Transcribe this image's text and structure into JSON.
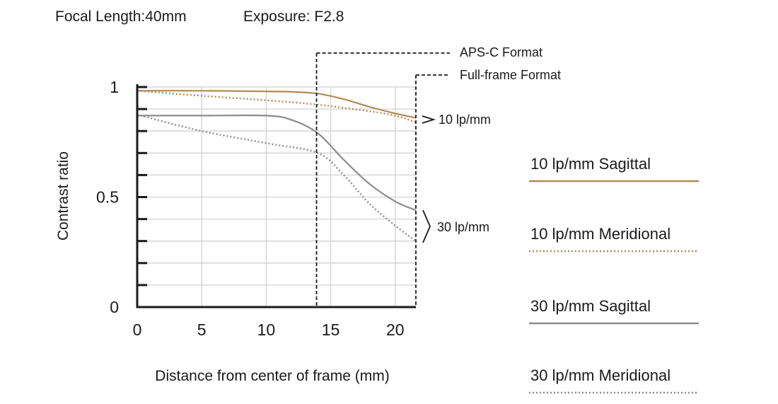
{
  "header": {
    "focal_length": "Focal Length:40mm",
    "exposure": "Exposure: F2.8"
  },
  "chart_data": {
    "type": "line",
    "xlabel": "Distance from center of frame (mm)",
    "ylabel": "Contrast ratio",
    "xlim": [
      0,
      21.6
    ],
    "ylim": [
      0,
      1
    ],
    "x_ticks": [
      0,
      5,
      10,
      15,
      20
    ],
    "x_tick_labels": [
      "0",
      "5",
      "10",
      "15",
      "20"
    ],
    "y_tick_labels": [
      {
        "value": 0,
        "label": "0"
      },
      {
        "value": 0.5,
        "label": "0.5"
      },
      {
        "value": 1,
        "label": "1"
      }
    ],
    "y_minor_ticks": [
      0.1,
      0.2,
      0.3,
      0.4,
      0.6,
      0.7,
      0.8,
      0.9
    ],
    "grid": true,
    "format_markers": [
      {
        "label": "APS-C Format",
        "x": 13.9
      },
      {
        "label": "Full-frame Format",
        "x": 21.6
      }
    ],
    "group_labels": [
      {
        "label": "10 lp/mm",
        "style": "arrow"
      },
      {
        "label": "30 lp/mm",
        "style": "brace"
      }
    ],
    "series": [
      {
        "name": "10 lp/mm Sagittal",
        "color": "#b08a55",
        "dash": "solid",
        "x": [
          0,
          5,
          10,
          12,
          14,
          16,
          18,
          20,
          21.6
        ],
        "y": [
          0.983,
          0.983,
          0.98,
          0.978,
          0.97,
          0.945,
          0.91,
          0.88,
          0.86
        ]
      },
      {
        "name": "10 lp/mm Meridional",
        "color": "#b08a55",
        "dash": "dotted",
        "x": [
          0,
          5,
          10,
          14,
          16,
          18,
          20,
          21.6
        ],
        "y": [
          0.983,
          0.96,
          0.94,
          0.92,
          0.905,
          0.89,
          0.87,
          0.84
        ]
      },
      {
        "name": "30 lp/mm Sagittal",
        "color": "#8c8c8c",
        "dash": "solid",
        "x": [
          0,
          5,
          10,
          12,
          14,
          16,
          18,
          20,
          21.6
        ],
        "y": [
          0.87,
          0.87,
          0.87,
          0.85,
          0.79,
          0.67,
          0.56,
          0.48,
          0.44
        ]
      },
      {
        "name": "30 lp/mm Meridional",
        "color": "#8c8c8c",
        "dash": "dotted",
        "x": [
          0,
          5,
          10,
          14,
          16,
          18,
          20,
          21.6
        ],
        "y": [
          0.875,
          0.8,
          0.745,
          0.7,
          0.6,
          0.47,
          0.37,
          0.3
        ]
      }
    ]
  }
}
